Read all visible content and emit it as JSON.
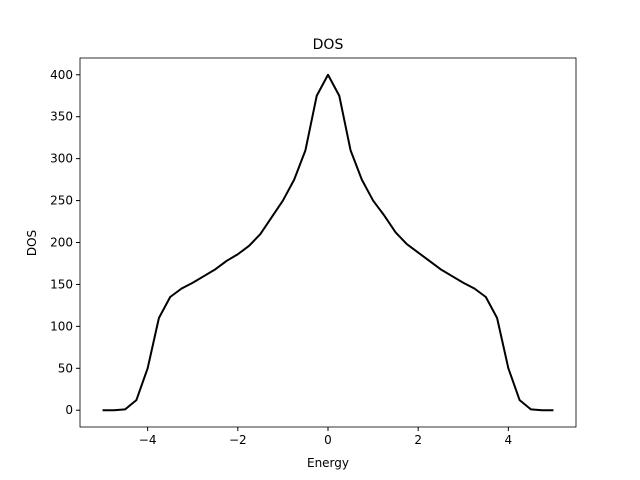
{
  "chart_data": {
    "type": "line",
    "title": "DOS",
    "x_label": "Energy",
    "y_label": "DOS",
    "x": [
      -5,
      -4.75,
      -4.5,
      -4.25,
      -4,
      -3.75,
      -3.5,
      -3.25,
      -3,
      -2.75,
      -2.5,
      -2.25,
      -2,
      -1.75,
      -1.5,
      -1.25,
      -1,
      -0.75,
      -0.5,
      -0.25,
      0,
      0.25,
      0.5,
      0.75,
      1,
      1.25,
      1.5,
      1.75,
      2,
      2.25,
      2.5,
      2.75,
      3,
      3.25,
      3.5,
      3.75,
      4,
      4.25,
      4.5,
      4.75,
      5
    ],
    "series": [
      {
        "name": "DOS",
        "color": "#000000",
        "values": [
          0,
          0,
          1,
          12,
          50,
          110,
          135,
          145,
          152,
          160,
          168,
          178,
          186,
          196,
          210,
          230,
          250,
          275,
          310,
          375,
          400,
          375,
          310,
          275,
          250,
          232,
          212,
          198,
          188,
          178,
          168,
          160,
          152,
          145,
          135,
          110,
          50,
          12,
          1,
          0,
          0
        ]
      }
    ],
    "xlim": [
      -5.5,
      5.5
    ],
    "ylim": [
      -20,
      420
    ],
    "xticks": [
      {
        "value": -4,
        "label": "−4"
      },
      {
        "value": -2,
        "label": "−2"
      },
      0,
      2,
      4
    ],
    "yticks": [
      0,
      50,
      100,
      150,
      200,
      250,
      300,
      350,
      400
    ],
    "grid": false
  }
}
